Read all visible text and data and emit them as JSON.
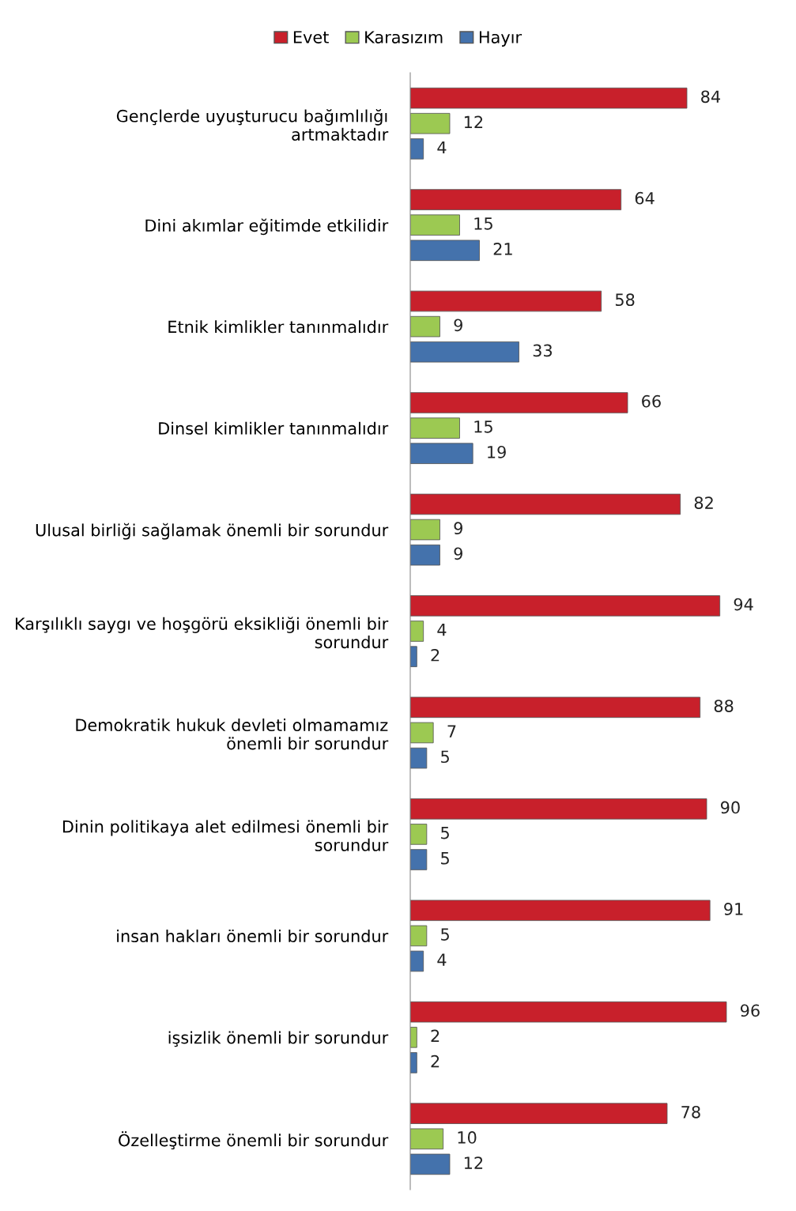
{
  "chart_data": {
    "type": "bar",
    "orientation": "horizontal",
    "legend": "top",
    "data_labels": true,
    "grid": false,
    "tick_labels": "y",
    "categories": [
      "Gençlerde uyuşturucu bağımlılığı\nartmaktadır",
      "Dini akımlar eğitimde etkilidir",
      "Etnik kimlikler tanınmalıdır",
      "Dinsel kimlikler tanınmalıdır",
      "Ulusal birliği sağlamak önemli bir sorundur",
      "Karşılıklı saygı ve hoşgörü eksikliği önemli bir\nsorundur",
      "Demokratik hukuk devleti olmamamız\nönemli bir sorundur",
      "Dinin politikaya alet edilmesi önemli bir\nsorundur",
      "insan hakları önemli bir sorundur",
      "işsizlik önemli bir sorundur",
      "Özelleştirme önemli bir sorundur"
    ],
    "series": [
      {
        "name": "Evet",
        "color": "#c8202b",
        "values": [
          84,
          64,
          58,
          66,
          82,
          94,
          88,
          90,
          91,
          96,
          78
        ]
      },
      {
        "name": "Karasızım",
        "color": "#9cc952",
        "values": [
          12,
          15,
          9,
          15,
          9,
          4,
          7,
          5,
          5,
          2,
          10
        ]
      },
      {
        "name": "Hayır",
        "color": "#4472ac",
        "values": [
          4,
          21,
          33,
          19,
          9,
          2,
          5,
          5,
          4,
          2,
          12
        ]
      }
    ]
  }
}
